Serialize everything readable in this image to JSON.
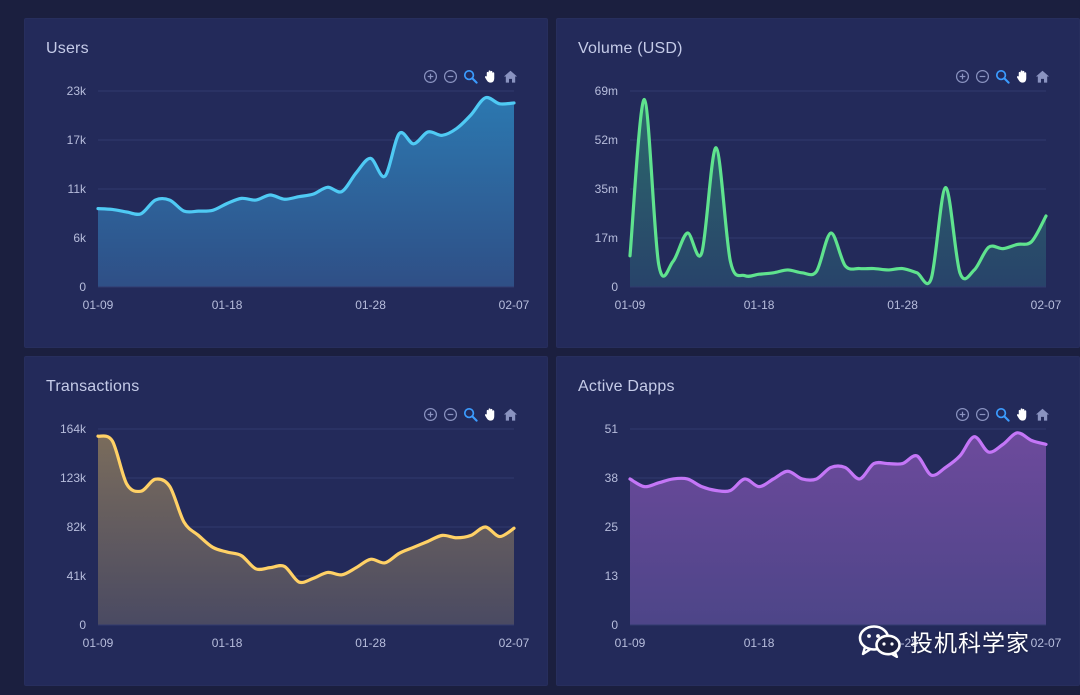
{
  "colors": {
    "background": "#1b1f3f",
    "panel": "#232a5a",
    "grid": "#313a6e",
    "tick_text": "#b7bddc",
    "title_text": "#c5cbe8",
    "toolbox_icon": "#8a93c0",
    "toolbox_active": "#3b9cff"
  },
  "toolbox": {
    "icons": [
      "zoom-in-icon",
      "zoom-out-icon",
      "zoom-select-icon",
      "pan-hand-icon",
      "home-reset-icon"
    ]
  },
  "watermark": {
    "text": "投机科学家",
    "icon": "wechat-icon"
  },
  "chart_data": [
    {
      "type": "area",
      "title": "Users",
      "color": "#4fcaf4",
      "fill_top": "#2c78b0",
      "fill_bottom": "#2f4f86",
      "ylim": [
        0,
        23
      ],
      "y_ticks": [
        "0",
        "6k",
        "11k",
        "17k",
        "23k"
      ],
      "x_ticks": [
        "01-09",
        "01-18",
        "01-28",
        "02-07"
      ],
      "x": [
        "01-09",
        "01-10",
        "01-11",
        "01-12",
        "01-13",
        "01-14",
        "01-15",
        "01-16",
        "01-17",
        "01-18",
        "01-19",
        "01-20",
        "01-21",
        "01-22",
        "01-23",
        "01-24",
        "01-25",
        "01-26",
        "01-27",
        "01-28",
        "01-29",
        "01-30",
        "01-31",
        "02-01",
        "02-02",
        "02-03",
        "02-04",
        "02-05",
        "02-06",
        "02-07"
      ],
      "values": [
        9.2,
        9.1,
        8.8,
        8.6,
        10.2,
        10.2,
        8.9,
        8.9,
        9.0,
        9.8,
        10.4,
        10.2,
        10.8,
        10.3,
        10.6,
        10.9,
        11.7,
        11.2,
        13.4,
        15.1,
        13.0,
        18.0,
        16.8,
        18.2,
        17.8,
        18.6,
        20.2,
        22.2,
        21.5,
        21.6
      ]
    },
    {
      "type": "area",
      "title": "Volume (USD)",
      "color": "#5fe38e",
      "fill_top": "#2c6a6c",
      "fill_bottom": "#28436a",
      "ylim": [
        0,
        69
      ],
      "y_ticks": [
        "0",
        "17m",
        "35m",
        "52m",
        "69m"
      ],
      "x_ticks": [
        "01-09",
        "01-18",
        "01-28",
        "02-07"
      ],
      "x": [
        "01-09",
        "01-10",
        "01-11",
        "01-12",
        "01-13",
        "01-14",
        "01-15",
        "01-16",
        "01-17",
        "01-18",
        "01-19",
        "01-20",
        "01-21",
        "01-22",
        "01-23",
        "01-24",
        "01-25",
        "01-26",
        "01-27",
        "01-28",
        "01-29",
        "01-30",
        "01-31",
        "02-01",
        "02-02",
        "02-03",
        "02-04",
        "02-05",
        "02-06",
        "02-07"
      ],
      "values": [
        11,
        66,
        8,
        9,
        19,
        12,
        49,
        9,
        4,
        4.5,
        5,
        6,
        5,
        5.5,
        19,
        7.5,
        6.5,
        6.5,
        6,
        6.5,
        5,
        3,
        35,
        5,
        6,
        14,
        13.5,
        15,
        16,
        25
      ]
    },
    {
      "type": "area",
      "title": "Transactions",
      "color": "#ffd166",
      "fill_top": "#7a6c5c",
      "fill_bottom": "#4a4a62",
      "ylim": [
        0,
        164
      ],
      "y_ticks": [
        "0",
        "41k",
        "82k",
        "123k",
        "164k"
      ],
      "x_ticks": [
        "01-09",
        "01-18",
        "01-28",
        "02-07"
      ],
      "x": [
        "01-09",
        "01-10",
        "01-11",
        "01-12",
        "01-13",
        "01-14",
        "01-15",
        "01-16",
        "01-17",
        "01-18",
        "01-19",
        "01-20",
        "01-21",
        "01-22",
        "01-23",
        "01-24",
        "01-25",
        "01-26",
        "01-27",
        "01-28",
        "01-29",
        "01-30",
        "01-31",
        "02-01",
        "02-02",
        "02-03",
        "02-04",
        "02-05",
        "02-06",
        "02-07"
      ],
      "values": [
        158,
        154,
        118,
        112,
        122,
        116,
        86,
        75,
        65,
        61,
        58,
        47,
        48,
        49,
        36,
        39,
        44,
        42,
        48,
        55,
        52,
        60,
        65,
        70,
        75,
        73,
        75,
        82,
        74,
        81
      ]
    },
    {
      "type": "area",
      "title": "Active Dapps",
      "color": "#c476f7",
      "fill_top": "#6d4a9c",
      "fill_bottom": "#4d4588",
      "ylim": [
        0,
        51
      ],
      "y_ticks": [
        "0",
        "13",
        "25",
        "38",
        "51"
      ],
      "x_ticks": [
        "01-09",
        "01-18",
        "01-28",
        "02-07"
      ],
      "x": [
        "01-09",
        "01-10",
        "01-11",
        "01-12",
        "01-13",
        "01-14",
        "01-15",
        "01-16",
        "01-17",
        "01-18",
        "01-19",
        "01-20",
        "01-21",
        "01-22",
        "01-23",
        "01-24",
        "01-25",
        "01-26",
        "01-27",
        "01-28",
        "01-29",
        "01-30",
        "01-31",
        "02-01",
        "02-02",
        "02-03",
        "02-04",
        "02-05",
        "02-06",
        "02-07"
      ],
      "values": [
        38,
        36,
        37,
        38,
        38,
        36,
        35,
        35,
        38,
        36,
        38,
        40,
        38,
        38,
        41,
        41,
        38,
        42,
        42,
        42,
        44,
        39,
        41,
        44,
        49,
        45,
        47,
        50,
        48,
        47
      ]
    }
  ]
}
